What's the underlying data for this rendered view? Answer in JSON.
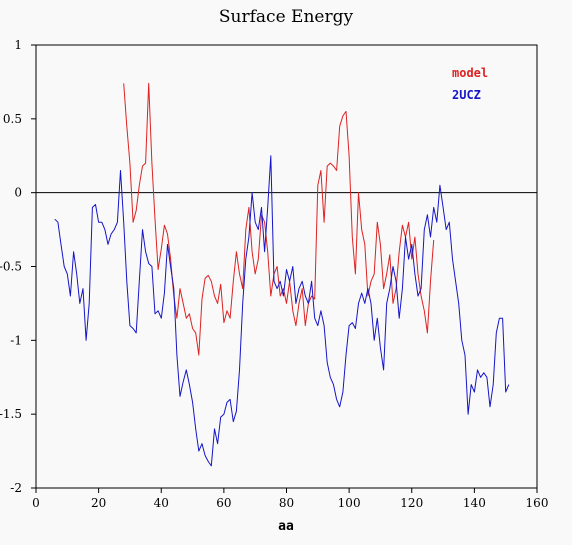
{
  "chart_data": {
    "type": "line",
    "title": "Surface Energy",
    "xlabel": "aa",
    "ylabel": "",
    "xlim": [
      0,
      160
    ],
    "ylim": [
      -2,
      1
    ],
    "xticks": [
      0,
      20,
      40,
      60,
      80,
      100,
      120,
      140,
      160
    ],
    "yticks": [
      1,
      0.5,
      0,
      -0.5,
      -1,
      -1.5,
      -2
    ],
    "xtick_labels": [
      "0",
      "20",
      "40",
      "60",
      "80",
      "100",
      "120",
      "140",
      "160"
    ],
    "ytick_labels": [
      "1",
      "0.5",
      "0",
      "-0.5",
      "-1",
      "-1.5",
      "-2"
    ],
    "zero_line": true,
    "grid": false,
    "legend": "top-right",
    "series": [
      {
        "name": "model",
        "color": "#dd2222",
        "x": [
          28,
          29,
          30,
          31,
          32,
          33,
          34,
          35,
          36,
          37,
          38,
          39,
          40,
          41,
          42,
          43,
          44,
          45,
          46,
          47,
          48,
          49,
          50,
          51,
          52,
          53,
          54,
          55,
          56,
          57,
          58,
          59,
          60,
          61,
          62,
          63,
          64,
          65,
          66,
          67,
          68,
          69,
          70,
          71,
          72,
          73,
          74,
          75,
          76,
          77,
          78,
          79,
          80,
          81,
          82,
          83,
          84,
          85,
          86,
          87,
          88,
          89,
          90,
          91,
          92,
          93,
          94,
          95,
          96,
          97,
          98,
          99,
          100,
          101,
          102,
          103,
          104,
          105,
          106,
          107,
          108,
          109,
          110,
          111,
          112,
          113,
          114,
          115,
          116,
          117,
          118,
          119,
          120,
          121,
          122,
          123,
          124,
          125,
          126,
          127
        ],
        "y": [
          0.74,
          0.45,
          0.2,
          -0.2,
          -0.12,
          0.05,
          0.18,
          0.2,
          0.74,
          0.2,
          -0.18,
          -0.52,
          -0.38,
          -0.22,
          -0.28,
          -0.45,
          -0.7,
          -0.85,
          -0.65,
          -0.75,
          -0.85,
          -0.82,
          -0.92,
          -0.95,
          -1.1,
          -0.72,
          -0.58,
          -0.56,
          -0.6,
          -0.7,
          -0.75,
          -0.62,
          -0.88,
          -0.8,
          -0.85,
          -0.6,
          -0.4,
          -0.55,
          -0.65,
          -0.25,
          -0.1,
          -0.4,
          -0.55,
          -0.45,
          -0.15,
          -0.2,
          -0.4,
          -0.7,
          -0.55,
          -0.5,
          -0.7,
          -0.65,
          -0.75,
          -0.6,
          -0.8,
          -0.9,
          -0.75,
          -0.65,
          -0.9,
          -0.75,
          -0.7,
          -0.72,
          0.05,
          0.15,
          -0.2,
          0.18,
          0.2,
          0.18,
          0.15,
          0.45,
          0.52,
          0.55,
          0.25,
          -0.3,
          -0.55,
          0.0,
          -0.25,
          -0.35,
          -0.7,
          -0.6,
          -0.55,
          -0.2,
          -0.35,
          -0.65,
          -0.55,
          -0.42,
          -0.75,
          -0.65,
          -0.4,
          -0.22,
          -0.3,
          -0.2,
          -0.45,
          -0.3,
          -0.55,
          -0.7,
          -0.8,
          -0.95,
          -0.6,
          -0.32
        ]
      },
      {
        "name": "2UCZ",
        "color": "#1515c8",
        "x": [
          6,
          7,
          8,
          9,
          10,
          11,
          12,
          13,
          14,
          15,
          16,
          17,
          18,
          19,
          20,
          21,
          22,
          23,
          24,
          25,
          26,
          27,
          28,
          29,
          30,
          31,
          32,
          33,
          34,
          35,
          36,
          37,
          38,
          39,
          40,
          41,
          42,
          43,
          44,
          45,
          46,
          47,
          48,
          49,
          50,
          51,
          52,
          53,
          54,
          55,
          56,
          57,
          58,
          59,
          60,
          61,
          62,
          63,
          64,
          65,
          66,
          67,
          68,
          69,
          70,
          71,
          72,
          73,
          74,
          75,
          76,
          77,
          78,
          79,
          80,
          81,
          82,
          83,
          84,
          85,
          86,
          87,
          88,
          89,
          90,
          91,
          92,
          93,
          94,
          95,
          96,
          97,
          98,
          99,
          100,
          101,
          102,
          103,
          104,
          105,
          106,
          107,
          108,
          109,
          110,
          111,
          112,
          113,
          114,
          115,
          116,
          117,
          118,
          119,
          120,
          121,
          122,
          123,
          124,
          125,
          126,
          127,
          128,
          129,
          130,
          131,
          132,
          133,
          134,
          135,
          136,
          137,
          138,
          139,
          140,
          141,
          142,
          143,
          144,
          145,
          146,
          147,
          148,
          149,
          150,
          151
        ],
        "y": [
          -0.18,
          -0.2,
          -0.35,
          -0.5,
          -0.55,
          -0.7,
          -0.4,
          -0.55,
          -0.75,
          -0.65,
          -1.0,
          -0.75,
          -0.1,
          -0.08,
          -0.2,
          -0.2,
          -0.25,
          -0.35,
          -0.28,
          -0.25,
          -0.2,
          0.15,
          -0.2,
          -0.6,
          -0.9,
          -0.92,
          -0.95,
          -0.6,
          -0.25,
          -0.4,
          -0.48,
          -0.5,
          -0.82,
          -0.8,
          -0.85,
          -0.68,
          -0.35,
          -0.5,
          -0.65,
          -1.1,
          -1.38,
          -1.28,
          -1.2,
          -1.3,
          -1.42,
          -1.6,
          -1.75,
          -1.7,
          -1.78,
          -1.82,
          -1.85,
          -1.6,
          -1.7,
          -1.52,
          -1.5,
          -1.42,
          -1.4,
          -1.55,
          -1.48,
          -1.2,
          -0.75,
          -0.45,
          -0.3,
          0.0,
          -0.2,
          -0.25,
          -0.1,
          -0.4,
          -0.1,
          0.25,
          -0.6,
          -0.65,
          -0.6,
          -0.7,
          -0.52,
          -0.6,
          -0.5,
          -0.75,
          -0.65,
          -0.6,
          -0.7,
          -0.75,
          -0.6,
          -0.85,
          -0.9,
          -0.8,
          -0.9,
          -1.15,
          -1.25,
          -1.3,
          -1.4,
          -1.45,
          -1.35,
          -1.1,
          -0.9,
          -0.88,
          -0.92,
          -0.75,
          -0.68,
          -0.75,
          -0.65,
          -0.75,
          -1.0,
          -0.85,
          -1.05,
          -1.2,
          -0.75,
          -0.65,
          -0.5,
          -0.6,
          -0.85,
          -0.65,
          -0.3,
          -0.45,
          -0.35,
          -0.55,
          -0.7,
          -0.65,
          -0.25,
          -0.15,
          -0.3,
          -0.1,
          -0.2,
          0.05,
          -0.1,
          -0.25,
          -0.2,
          -0.45,
          -0.6,
          -0.75,
          -1.0,
          -1.1,
          -1.5,
          -1.3,
          -1.35,
          -1.2,
          -1.25,
          -1.22,
          -1.25,
          -1.45,
          -1.3,
          -0.95,
          -0.85,
          -0.85,
          -1.35,
          -1.3
        ]
      }
    ]
  }
}
